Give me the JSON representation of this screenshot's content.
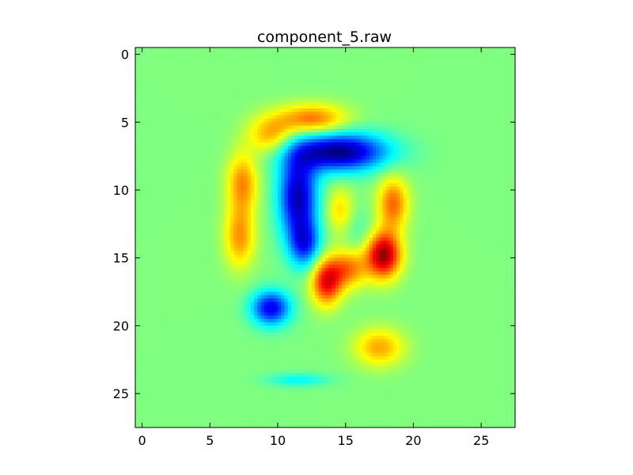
{
  "chart_data": {
    "type": "heatmap",
    "title": "component_5.raw",
    "xlabel": "",
    "ylabel": "",
    "xlim": [
      -0.5,
      27.5
    ],
    "ylim": [
      27.5,
      -0.5
    ],
    "x_ticks": [
      0,
      5,
      10,
      15,
      20,
      25
    ],
    "y_ticks": [
      0,
      5,
      10,
      15,
      20,
      25
    ],
    "grid": false,
    "legend": "none",
    "colormap": "jet",
    "value_range": [
      -1,
      1
    ],
    "background_value": 0,
    "blobs": [
      {
        "name": "red-arc",
        "x": 12.5,
        "y": 4.8,
        "sx": 1.8,
        "sy": 0.8,
        "v": 0.55
      },
      {
        "name": "left-arc-upper",
        "x": 7.4,
        "y": 9.5,
        "sx": 0.8,
        "sy": 1.6,
        "v": 0.48
      },
      {
        "name": "left-arc-lower",
        "x": 7.2,
        "y": 13.5,
        "sx": 0.8,
        "sy": 1.6,
        "v": 0.45
      },
      {
        "name": "upper-left-arc",
        "x": 9.5,
        "y": 6.0,
        "sx": 1.2,
        "sy": 1.0,
        "v": 0.42
      },
      {
        "name": "blue-top",
        "x": 14.5,
        "y": 7.2,
        "sx": 2.5,
        "sy": 1.0,
        "v": -1.0
      },
      {
        "name": "blue-stroke",
        "x": 11.5,
        "y": 10.5,
        "sx": 1.0,
        "sy": 2.2,
        "v": -0.9
      },
      {
        "name": "blue-tail",
        "x": 12.0,
        "y": 14.0,
        "sx": 0.8,
        "sy": 1.2,
        "v": -0.6
      },
      {
        "name": "blue-dot",
        "x": 9.5,
        "y": 18.7,
        "sx": 1.0,
        "sy": 0.9,
        "v": -0.8
      },
      {
        "name": "blue-dash",
        "x": 11.5,
        "y": 24.0,
        "sx": 1.6,
        "sy": 0.35,
        "v": -0.25
      },
      {
        "name": "dark-red-right",
        "x": 17.8,
        "y": 14.8,
        "sx": 0.9,
        "sy": 1.2,
        "v": 0.95
      },
      {
        "name": "orange-right",
        "x": 18.5,
        "y": 11.0,
        "sx": 0.8,
        "sy": 1.4,
        "v": 0.55
      },
      {
        "name": "red-center",
        "x": 13.6,
        "y": 16.8,
        "sx": 0.8,
        "sy": 1.2,
        "v": 0.75
      },
      {
        "name": "orange-center",
        "x": 15.2,
        "y": 15.8,
        "sx": 1.0,
        "sy": 1.0,
        "v": 0.5
      },
      {
        "name": "yellow-center",
        "x": 14.6,
        "y": 11.5,
        "sx": 0.7,
        "sy": 1.2,
        "v": 0.32
      },
      {
        "name": "yellow-low",
        "x": 17.5,
        "y": 21.6,
        "sx": 1.3,
        "sy": 1.0,
        "v": 0.42
      },
      {
        "name": "blue-faint",
        "x": 16.0,
        "y": 13.0,
        "sx": 0.8,
        "sy": 1.2,
        "v": -0.12
      }
    ]
  }
}
